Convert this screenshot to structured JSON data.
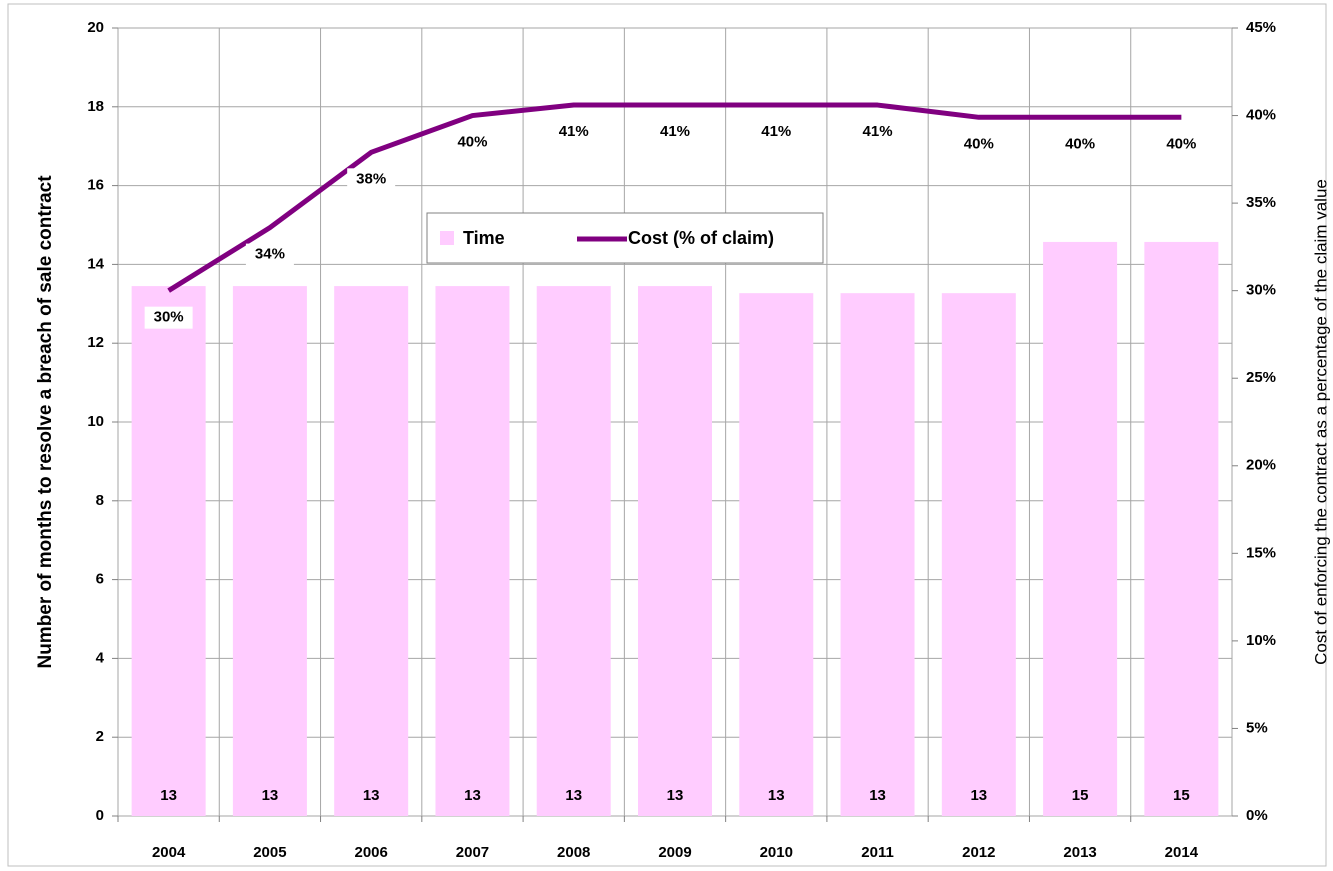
{
  "chart_data": {
    "type": "bar",
    "y_label": "Number of months  to resolve a breach of sale contract",
    "y2_label": "Cost of enforcing the contract as a percentage of the claim value",
    "categories": [
      "2004",
      "2005",
      "2006",
      "2007",
      "2008",
      "2009",
      "2010",
      "2011",
      "2012",
      "2013",
      "2014"
    ],
    "series": [
      {
        "name": "Time",
        "type": "bar",
        "color": "#ffccff",
        "values": [
          13.45,
          13.45,
          13.45,
          13.45,
          13.45,
          13.45,
          13.27,
          13.27,
          13.27,
          14.57,
          14.57
        ],
        "value_labels": [
          "13",
          "13",
          "13",
          "13",
          "13",
          "13",
          "13",
          "13",
          "13",
          "15",
          "15"
        ]
      },
      {
        "name": "Cost (% of claim)",
        "type": "line",
        "axis": "y2",
        "color": "#800080",
        "values": [
          30,
          33.6,
          37.9,
          40,
          40.6,
          40.6,
          40.6,
          40.6,
          39.9,
          39.9,
          39.9
        ],
        "value_labels": [
          "30%",
          "34%",
          "38%",
          "40%",
          "41%",
          "41%",
          "41%",
          "41%",
          "40%",
          "40%",
          "40%"
        ]
      }
    ],
    "ylim": [
      0,
      20
    ],
    "yticks": [
      0,
      2,
      4,
      6,
      8,
      10,
      12,
      14,
      16,
      18,
      20
    ],
    "y2lim": [
      0,
      45
    ],
    "y2ticks": [
      {
        "value": 0,
        "label": "0%"
      },
      {
        "value": 5,
        "label": "5%"
      },
      {
        "value": 10,
        "label": "10%"
      },
      {
        "value": 15,
        "label": "15%"
      },
      {
        "value": 20,
        "label": "20%"
      },
      {
        "value": 25,
        "label": "25%"
      },
      {
        "value": 30,
        "label": "30%"
      },
      {
        "value": 35,
        "label": "35%"
      },
      {
        "value": 40,
        "label": "40%"
      },
      {
        "value": 45,
        "label": "45%"
      }
    ],
    "grid": true,
    "legend": "top"
  }
}
